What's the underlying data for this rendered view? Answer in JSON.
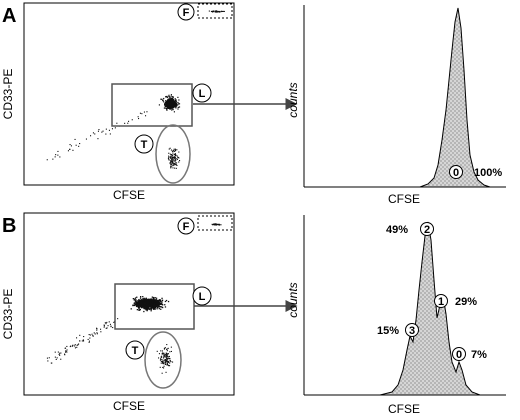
{
  "chart_data": [
    {
      "type": "scatter",
      "panel": "A",
      "xlabel": "CFSE",
      "ylabel": "CD33-PE",
      "gates": [
        "F",
        "L",
        "T"
      ]
    },
    {
      "type": "area",
      "panel": "A",
      "xlabel": "CFSE",
      "ylabel": "counts",
      "peaks": [
        {
          "division": "0",
          "percent": "100%"
        }
      ]
    },
    {
      "type": "scatter",
      "panel": "B",
      "xlabel": "CFSE",
      "ylabel": "CD33-PE",
      "gates": [
        "F",
        "L",
        "T"
      ]
    },
    {
      "type": "area",
      "panel": "B",
      "xlabel": "CFSE",
      "ylabel": "counts",
      "peaks": [
        {
          "division": "2",
          "percent": "49%"
        },
        {
          "division": "1",
          "percent": "29%"
        },
        {
          "division": "3",
          "percent": "15%"
        },
        {
          "division": "0",
          "percent": "7%"
        }
      ]
    }
  ],
  "colors": {
    "dots": "#111111",
    "gate_outline": "#555555",
    "gate_fill_area": "#c8c8c8",
    "arrow": "#444444"
  }
}
